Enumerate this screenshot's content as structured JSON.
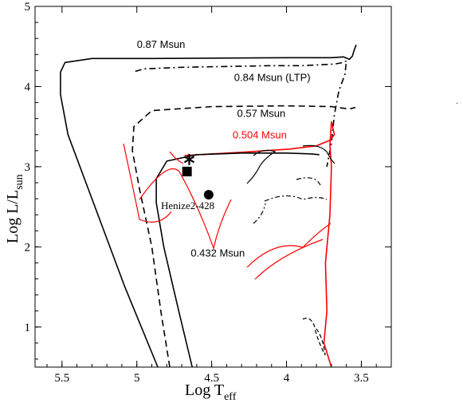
{
  "chart_data": {
    "type": "line",
    "title": "",
    "xlabel": "Log T",
    "xlabel_sub": "eff",
    "ylabel": "Log L/L",
    "ylabel_sub": "sun",
    "xlim": [
      5.68,
      3.3
    ],
    "ylim": [
      0.5,
      5.0
    ],
    "x_ticks": [
      5.5,
      5,
      4.5,
      4,
      3.5
    ],
    "x_tick_labels": [
      "5.5",
      "5",
      "4.5",
      "4",
      "3.5"
    ],
    "y_ticks": [
      1,
      2,
      3,
      4,
      5
    ],
    "y_tick_labels": [
      "1",
      "2",
      "3",
      "4",
      "5"
    ],
    "grid": false,
    "legend": "none",
    "series": [
      {
        "name": "0.87 Msun",
        "color": "#000000",
        "dash": "solid",
        "points": [
          [
            4.86,
            0.5
          ],
          [
            5.08,
            1.5
          ],
          [
            5.3,
            2.6
          ],
          [
            5.46,
            3.4
          ],
          [
            5.51,
            3.9
          ],
          [
            5.51,
            4.18
          ],
          [
            5.48,
            4.3
          ],
          [
            5.3,
            4.35
          ],
          [
            4.9,
            4.35
          ],
          [
            4.0,
            4.36
          ],
          [
            3.7,
            4.36
          ],
          [
            3.62,
            4.37
          ],
          [
            3.58,
            4.34
          ],
          [
            3.56,
            4.38
          ],
          [
            3.55,
            4.44
          ],
          [
            3.535,
            4.52
          ]
        ]
      },
      {
        "name": "0.84 Msun (LTP)",
        "color": "#000000",
        "dash": "8,4,2,4",
        "points": [
          [
            5.01,
            4.19
          ],
          [
            4.95,
            4.22
          ],
          [
            4.7,
            4.24
          ],
          [
            4.4,
            4.25
          ],
          [
            4.1,
            4.26
          ],
          [
            3.9,
            4.26
          ],
          [
            3.68,
            4.28
          ],
          [
            3.62,
            4.3
          ],
          [
            3.6,
            4.32
          ],
          [
            3.61,
            4.15
          ],
          [
            3.65,
            3.95
          ],
          [
            3.68,
            3.65
          ],
          [
            3.7,
            3.3
          ],
          [
            3.73,
            3.0
          ]
        ]
      },
      {
        "name": "0.57 Msun",
        "color": "#000000",
        "dash": "8,5",
        "points": [
          [
            4.78,
            0.5
          ],
          [
            4.84,
            1.2
          ],
          [
            4.9,
            2.0
          ],
          [
            4.98,
            2.7
          ],
          [
            5.03,
            3.2
          ],
          [
            5.02,
            3.5
          ],
          [
            4.9,
            3.7
          ],
          [
            4.5,
            3.75
          ],
          [
            4.0,
            3.76
          ],
          [
            3.7,
            3.75
          ],
          [
            3.58,
            3.72
          ],
          [
            3.54,
            3.74
          ]
        ]
      },
      {
        "name": "0.504 Msun",
        "color": "#ff0000",
        "dash": "solid",
        "points": [
          [
            4.68,
            3.14
          ],
          [
            4.3,
            3.18
          ],
          [
            3.98,
            3.22
          ],
          [
            3.8,
            3.26
          ],
          [
            3.71,
            3.33
          ],
          [
            3.68,
            3.4
          ],
          [
            3.7,
            3.56
          ],
          [
            3.71,
            3.27
          ],
          [
            3.7,
            3.0
          ],
          [
            3.71,
            2.4
          ],
          [
            3.74,
            1.8
          ],
          [
            3.73,
            1.2
          ],
          [
            3.75,
            0.8
          ],
          [
            3.7,
            0.5
          ]
        ]
      },
      {
        "name": "0.432 Msun",
        "color": "#000000",
        "dash": "solid",
        "points": [
          [
            4.63,
            0.5
          ],
          [
            4.72,
            1.2
          ],
          [
            4.82,
            2.0
          ],
          [
            4.87,
            2.55
          ],
          [
            4.87,
            2.85
          ],
          [
            4.8,
            3.07
          ],
          [
            4.6,
            3.15
          ],
          [
            4.3,
            3.17
          ],
          [
            4.0,
            3.17
          ],
          [
            3.84,
            3.16
          ],
          [
            3.78,
            3.15
          ]
        ]
      }
    ],
    "markers": [
      {
        "name": "Henize2-428",
        "shape": "square",
        "x": 4.665,
        "y": 2.94
      },
      {
        "name": "star",
        "shape": "asterisk",
        "x": 4.65,
        "y": 3.09
      },
      {
        "name": "circle",
        "shape": "circle",
        "x": 4.52,
        "y": 2.65
      }
    ],
    "annotations": [
      {
        "text": "0.87 Msun",
        "x": 5.0,
        "y": 4.48,
        "color": "#000000"
      },
      {
        "text": "0.84 Msun (LTP)",
        "x": 4.35,
        "y": 4.07,
        "color": "#000000"
      },
      {
        "text": "0.57 Msun",
        "x": 4.33,
        "y": 3.62,
        "color": "#000000"
      },
      {
        "text": "0.504 Msun",
        "x": 4.36,
        "y": 3.35,
        "color": "#ff0000"
      },
      {
        "text": "0.432 Msun",
        "x": 4.64,
        "y": 1.88,
        "color": "#000000"
      },
      {
        "text": "Henize2-428",
        "x": 4.66,
        "y": 2.47,
        "color": "#000000"
      }
    ]
  }
}
